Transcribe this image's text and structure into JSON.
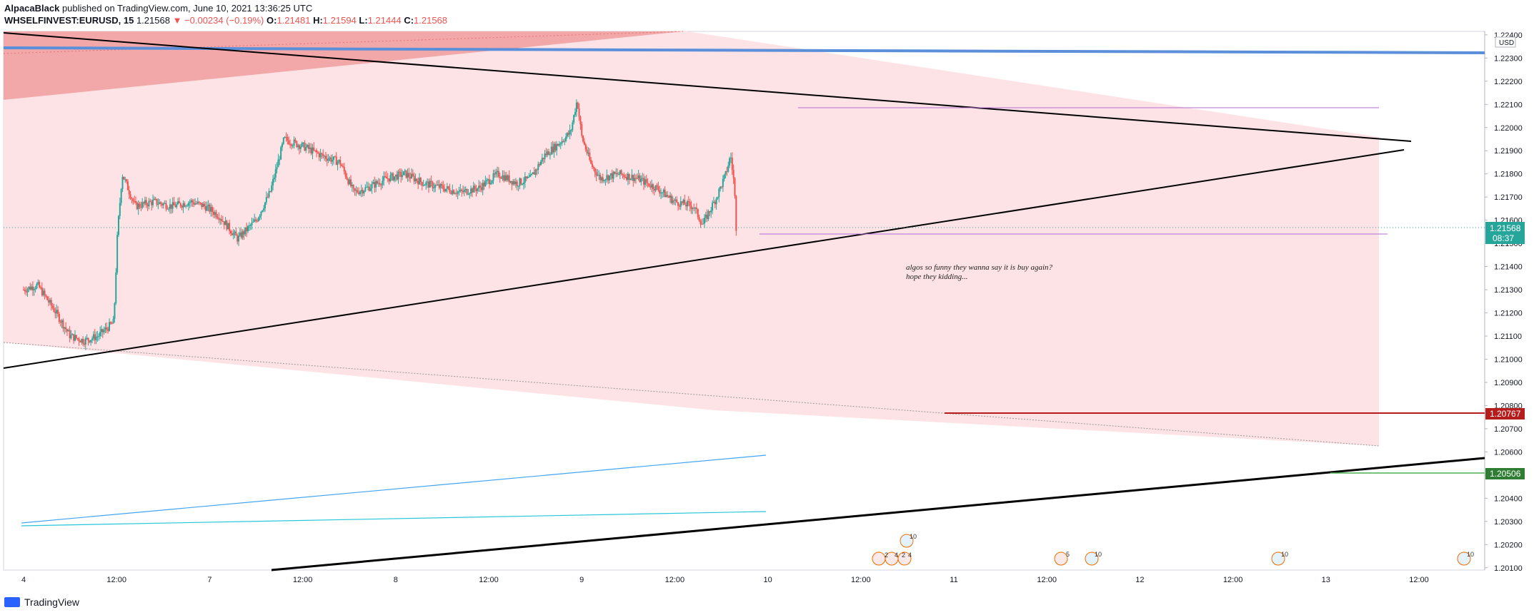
{
  "header": {
    "author_line_author": "AlpacaBlack",
    "author_line_rest": " published on TradingView.com, June 10, 2021 13:36:25 UTC",
    "symbol": "WHSELFINVEST:EURUSD, 15",
    "last": "1.21568",
    "change": "▼ −0.00234 (−0.19%)",
    "o_label": "O:",
    "o": "1.21481",
    "h_label": "H:",
    "h": "1.21594",
    "l_label": "L:",
    "l": "1.21444",
    "c_label": "C:",
    "c": "1.21568"
  },
  "footer": {
    "brand": "TradingView"
  },
  "colors": {
    "up": "#26a69a",
    "down": "#ef5350",
    "zone": "#fde3e5",
    "zone_dark": "#f2a7a9",
    "blue_line": "#5b8fd9",
    "purple": "#b36bd6",
    "red_line": "#b71c1c",
    "green_line": "#4caf50",
    "teal": "#26c6da"
  },
  "chart_data": {
    "type": "candlestick",
    "title": "",
    "currency": "USD",
    "x_ticks": [
      "4",
      "12:00",
      "7",
      "12:00",
      "8",
      "12:00",
      "9",
      "12:00",
      "10",
      "12:00",
      "11",
      "12:00",
      "12",
      "12:00",
      "13",
      "12:00"
    ],
    "y_ticks": [
      "1.22400",
      "1.22300",
      "1.22200",
      "1.22100",
      "1.22000",
      "1.21900",
      "1.21800",
      "1.21700",
      "1.21600",
      "1.21500",
      "1.21400",
      "1.21300",
      "1.21200",
      "1.21100",
      "1.21000",
      "1.20900",
      "1.20800",
      "1.20700",
      "1.20600",
      "1.20500",
      "1.20400",
      "1.20300",
      "1.20200",
      "1.20100"
    ],
    "ylim": [
      1.2009,
      1.22415
    ],
    "price_path": [
      [
        0,
        1.213
      ],
      [
        0.15,
        1.2132
      ],
      [
        0.35,
        1.212
      ],
      [
        0.5,
        1.211
      ],
      [
        0.65,
        1.2108
      ],
      [
        0.8,
        1.211
      ],
      [
        0.97,
        1.2116
      ],
      [
        1.01,
        1.2155
      ],
      [
        1.06,
        1.218
      ],
      [
        1.2,
        1.2166
      ],
      [
        1.4,
        1.2168
      ],
      [
        1.6,
        1.2166
      ],
      [
        1.8,
        1.2168
      ],
      [
        1.95,
        1.2166
      ],
      [
        2.1,
        1.2162
      ],
      [
        2.3,
        1.2152
      ],
      [
        2.5,
        1.216
      ],
      [
        2.65,
        1.2172
      ],
      [
        2.8,
        1.2195
      ],
      [
        3.0,
        1.2192
      ],
      [
        3.2,
        1.2188
      ],
      [
        3.4,
        1.2185
      ],
      [
        3.55,
        1.2172
      ],
      [
        3.7,
        1.2174
      ],
      [
        3.9,
        1.2178
      ],
      [
        4.1,
        1.218
      ],
      [
        4.3,
        1.2176
      ],
      [
        4.5,
        1.2174
      ],
      [
        4.7,
        1.2172
      ],
      [
        4.9,
        1.2174
      ],
      [
        5.1,
        1.218
      ],
      [
        5.3,
        1.2176
      ],
      [
        5.45,
        1.2178
      ],
      [
        5.6,
        1.2188
      ],
      [
        5.75,
        1.2193
      ],
      [
        5.88,
        1.2198
      ],
      [
        5.95,
        1.2212
      ],
      [
        6.0,
        1.2196
      ],
      [
        6.1,
        1.2184
      ],
      [
        6.2,
        1.2178
      ],
      [
        6.4,
        1.218
      ],
      [
        6.6,
        1.2178
      ],
      [
        6.8,
        1.2174
      ],
      [
        7.0,
        1.2168
      ],
      [
        7.2,
        1.2166
      ],
      [
        7.3,
        1.2158
      ],
      [
        7.45,
        1.217
      ],
      [
        7.55,
        1.218
      ],
      [
        7.6,
        1.2188
      ],
      [
        7.64,
        1.2175
      ],
      [
        7.66,
        1.2157
      ]
    ],
    "horizontal_levels": [
      {
        "price": 1.20767,
        "label": "1.20767"
      },
      {
        "price": 1.20506,
        "label": "1.20506"
      },
      {
        "price": 1.21568,
        "label": "1.21568",
        "countdown": "08:37"
      }
    ],
    "annotations": [
      "algos so funny they wanna say it is buy again?",
      "hope they kidding..."
    ],
    "event_markers": [
      "2",
      "4",
      "2",
      "4",
      "10",
      "5",
      "10",
      "10",
      "10"
    ]
  }
}
